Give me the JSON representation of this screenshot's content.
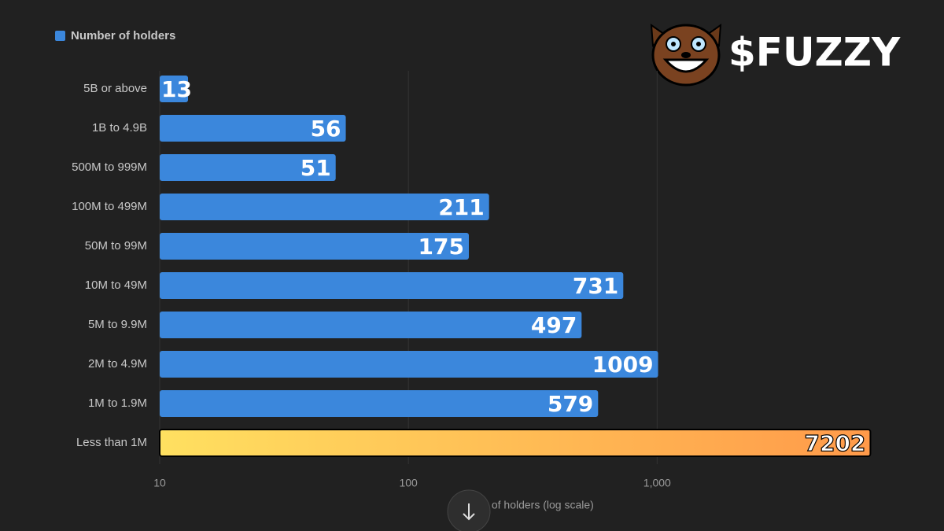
{
  "chart_data": {
    "type": "bar",
    "orientation": "horizontal",
    "brand": "$FUZZY",
    "legend": "Number of holders",
    "x_label": "Number of holders (log scale)",
    "categories": [
      "5B or above",
      "1B to 4.9B",
      "500M to 999M",
      "100M to 499M",
      "50M to 99M",
      "10M to 49M",
      "5M to 9.9M",
      "2M to 4.9M",
      "1M to 1.9M",
      "Less than 1M"
    ],
    "series": [
      {
        "name": "Number of holders",
        "color": "#3b87dc",
        "values": [
          13,
          56,
          51,
          211,
          175,
          731,
          497,
          1009,
          579,
          7202
        ],
        "colors": [
          "#3b87dc",
          "#3b87dc",
          "#3b87dc",
          "#3b87dc",
          "#3b87dc",
          "#3b87dc",
          "#3b87dc",
          "#3b87dc",
          "#3b87dc",
          [
            "#ffe060",
            "#ff9a4a"
          ]
        ]
      }
    ],
    "xlim": [
      10,
      7500
    ],
    "log_scale": true,
    "grid": true,
    "xticks": [
      10,
      100,
      {
        "value": 1000,
        "label": "1,000"
      }
    ]
  }
}
